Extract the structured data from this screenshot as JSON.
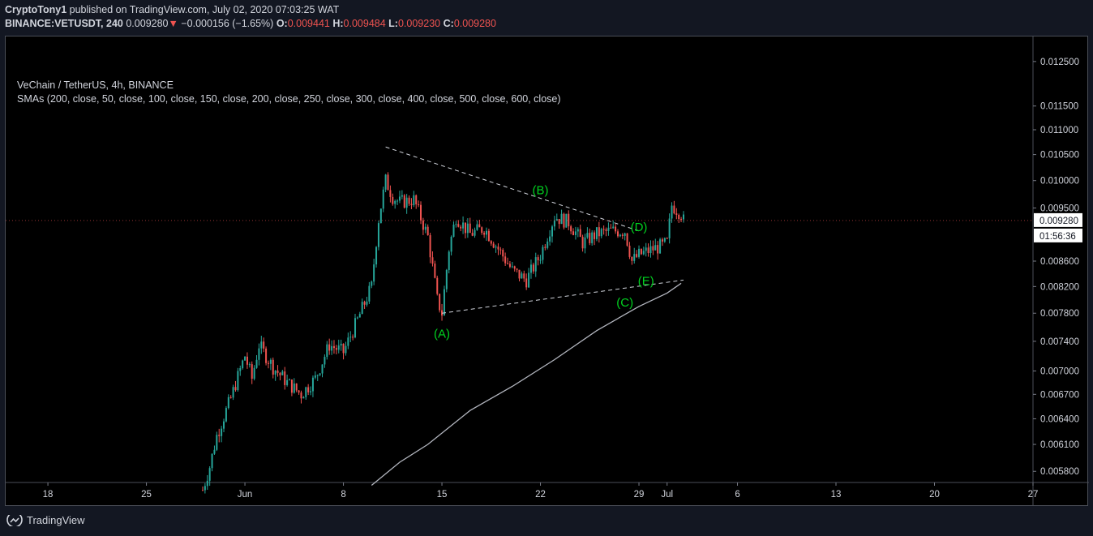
{
  "header": {
    "author": "CryptoTony1",
    "published_text": " published on TradingView.com, July 02, 2020 07:03:25 WAT",
    "symbol": "BINANCE:VETUSDT, 240",
    "last_price": "0.009280",
    "change_arrow": "▼",
    "change": "−0.000156 (−1.65%)",
    "open_label": "O:",
    "open": "0.009441",
    "high_label": "H:",
    "high": "0.009484",
    "low_label": "L:",
    "low": "0.009230",
    "close_label": "C:",
    "close": "0.009280"
  },
  "legend": {
    "title": "VeChain / TetherUS, 4h, BINANCE",
    "indicator": "SMAs (200, close, 50, close, 100, close, 150, close, 200, close, 250, close, 300, close, 400, close, 500, close, 600, close)"
  },
  "footer": {
    "brand": "TradingView"
  },
  "colors": {
    "background": "#000000",
    "up": "#26a69a",
    "down": "#ef5350",
    "sma": "#b2b5be",
    "trendline": "#d1d4dc",
    "wave_label": "#00d21f",
    "panel": "#131722"
  },
  "icons": {
    "logo": "tradingview-logo-icon",
    "change": "down-arrow-icon"
  },
  "chart_data": {
    "type": "candlestick",
    "timeframe": "4h",
    "x_axis": {
      "ticks": [
        "18",
        "25",
        "Jun",
        "8",
        "15",
        "22",
        "29",
        "Jul",
        "6",
        "13",
        "20",
        "27"
      ],
      "tick_dates": [
        "2020-05-18",
        "2020-05-25",
        "2020-06-01",
        "2020-06-08",
        "2020-06-15",
        "2020-06-22",
        "2020-06-29",
        "2020-07-01",
        "2020-07-06",
        "2020-07-13",
        "2020-07-20",
        "2020-07-27"
      ],
      "range": [
        "2020-05-15",
        "2020-07-27"
      ]
    },
    "y_axis": {
      "scale": "log",
      "side": "right",
      "ticks": [
        "0.012500",
        "0.011500",
        "0.011000",
        "0.010500",
        "0.010000",
        "0.009500",
        "0.008600",
        "0.008200",
        "0.007800",
        "0.007400",
        "0.007000",
        "0.006700",
        "0.006400",
        "0.006100",
        "0.005800"
      ],
      "range": [
        0.00568,
        0.0131
      ]
    },
    "price_label": "0.009280",
    "countdown": "01:56:36",
    "path_points": [
      [
        "2020-05-29",
        0.0056
      ],
      [
        "2020-05-29T12",
        0.00585
      ],
      [
        "2020-05-30",
        0.0062
      ],
      [
        "2020-05-31",
        0.00665
      ],
      [
        "2020-06-01",
        0.0072
      ],
      [
        "2020-06-01T12",
        0.0069
      ],
      [
        "2020-06-02",
        0.00735
      ],
      [
        "2020-06-03",
        0.00705
      ],
      [
        "2020-06-04",
        0.00685
      ],
      [
        "2020-06-05",
        0.0067
      ],
      [
        "2020-06-06",
        0.0069
      ],
      [
        "2020-06-07",
        0.00735
      ],
      [
        "2020-06-08",
        0.00725
      ],
      [
        "2020-06-09",
        0.0077
      ],
      [
        "2020-06-10",
        0.0082
      ],
      [
        "2020-06-10T12",
        0.0093
      ],
      [
        "2020-06-11",
        0.01
      ],
      [
        "2020-06-11T12",
        0.0097
      ],
      [
        "2020-06-12",
        0.0096
      ],
      [
        "2020-06-13",
        0.00965
      ],
      [
        "2020-06-14",
        0.009
      ],
      [
        "2020-06-14T16",
        0.008
      ],
      [
        "2020-06-15",
        0.0078
      ],
      [
        "2020-06-15T12",
        0.0088
      ],
      [
        "2020-06-16",
        0.00935
      ],
      [
        "2020-06-17",
        0.00905
      ],
      [
        "2020-06-18",
        0.00915
      ],
      [
        "2020-06-19",
        0.0088
      ],
      [
        "2020-06-20",
        0.00845
      ],
      [
        "2020-06-21",
        0.0083
      ],
      [
        "2020-06-22",
        0.0087
      ],
      [
        "2020-06-23",
        0.00935
      ],
      [
        "2020-06-24",
        0.00925
      ],
      [
        "2020-06-25",
        0.0089
      ],
      [
        "2020-06-26",
        0.00905
      ],
      [
        "2020-06-27",
        0.0091
      ],
      [
        "2020-06-28",
        0.0091
      ],
      [
        "2020-06-28T12",
        0.0086
      ],
      [
        "2020-06-29",
        0.0087
      ],
      [
        "2020-06-30",
        0.0088
      ],
      [
        "2020-06-30T16",
        0.00885
      ],
      [
        "2020-07-01",
        0.0089
      ],
      [
        "2020-07-01T08",
        0.00955
      ],
      [
        "2020-07-02",
        0.0094
      ],
      [
        "2020-07-02T04",
        0.00928
      ]
    ],
    "sma_series": {
      "name": "SMA 200",
      "points": [
        [
          "2020-06-10",
          0.00565
        ],
        [
          "2020-06-12",
          0.0059
        ],
        [
          "2020-06-14",
          0.0061
        ],
        [
          "2020-06-17",
          0.0065
        ],
        [
          "2020-06-20",
          0.0068
        ],
        [
          "2020-06-23",
          0.00715
        ],
        [
          "2020-06-26",
          0.00755
        ],
        [
          "2020-06-29",
          0.0079
        ],
        [
          "2020-07-01",
          0.0081
        ],
        [
          "2020-07-02",
          0.00825
        ]
      ]
    },
    "trendlines": [
      {
        "from": [
          "2020-06-11",
          0.01065
        ],
        "to": [
          "2020-06-29",
          0.0091
        ]
      },
      {
        "from": [
          "2020-06-15",
          0.0078
        ],
        "to": [
          "2020-07-02T04",
          0.0083
        ]
      }
    ],
    "annotations": [
      {
        "text": "(A)",
        "at": [
          "2020-06-15",
          0.00745
        ]
      },
      {
        "text": "(B)",
        "at": [
          "2020-06-22",
          0.00975
        ]
      },
      {
        "text": "(C)",
        "at": [
          "2020-06-28",
          0.0079
        ]
      },
      {
        "text": "(D)",
        "at": [
          "2020-06-29",
          0.0091
        ]
      },
      {
        "text": "(E)",
        "at": [
          "2020-06-29T12",
          0.00822
        ]
      }
    ]
  }
}
